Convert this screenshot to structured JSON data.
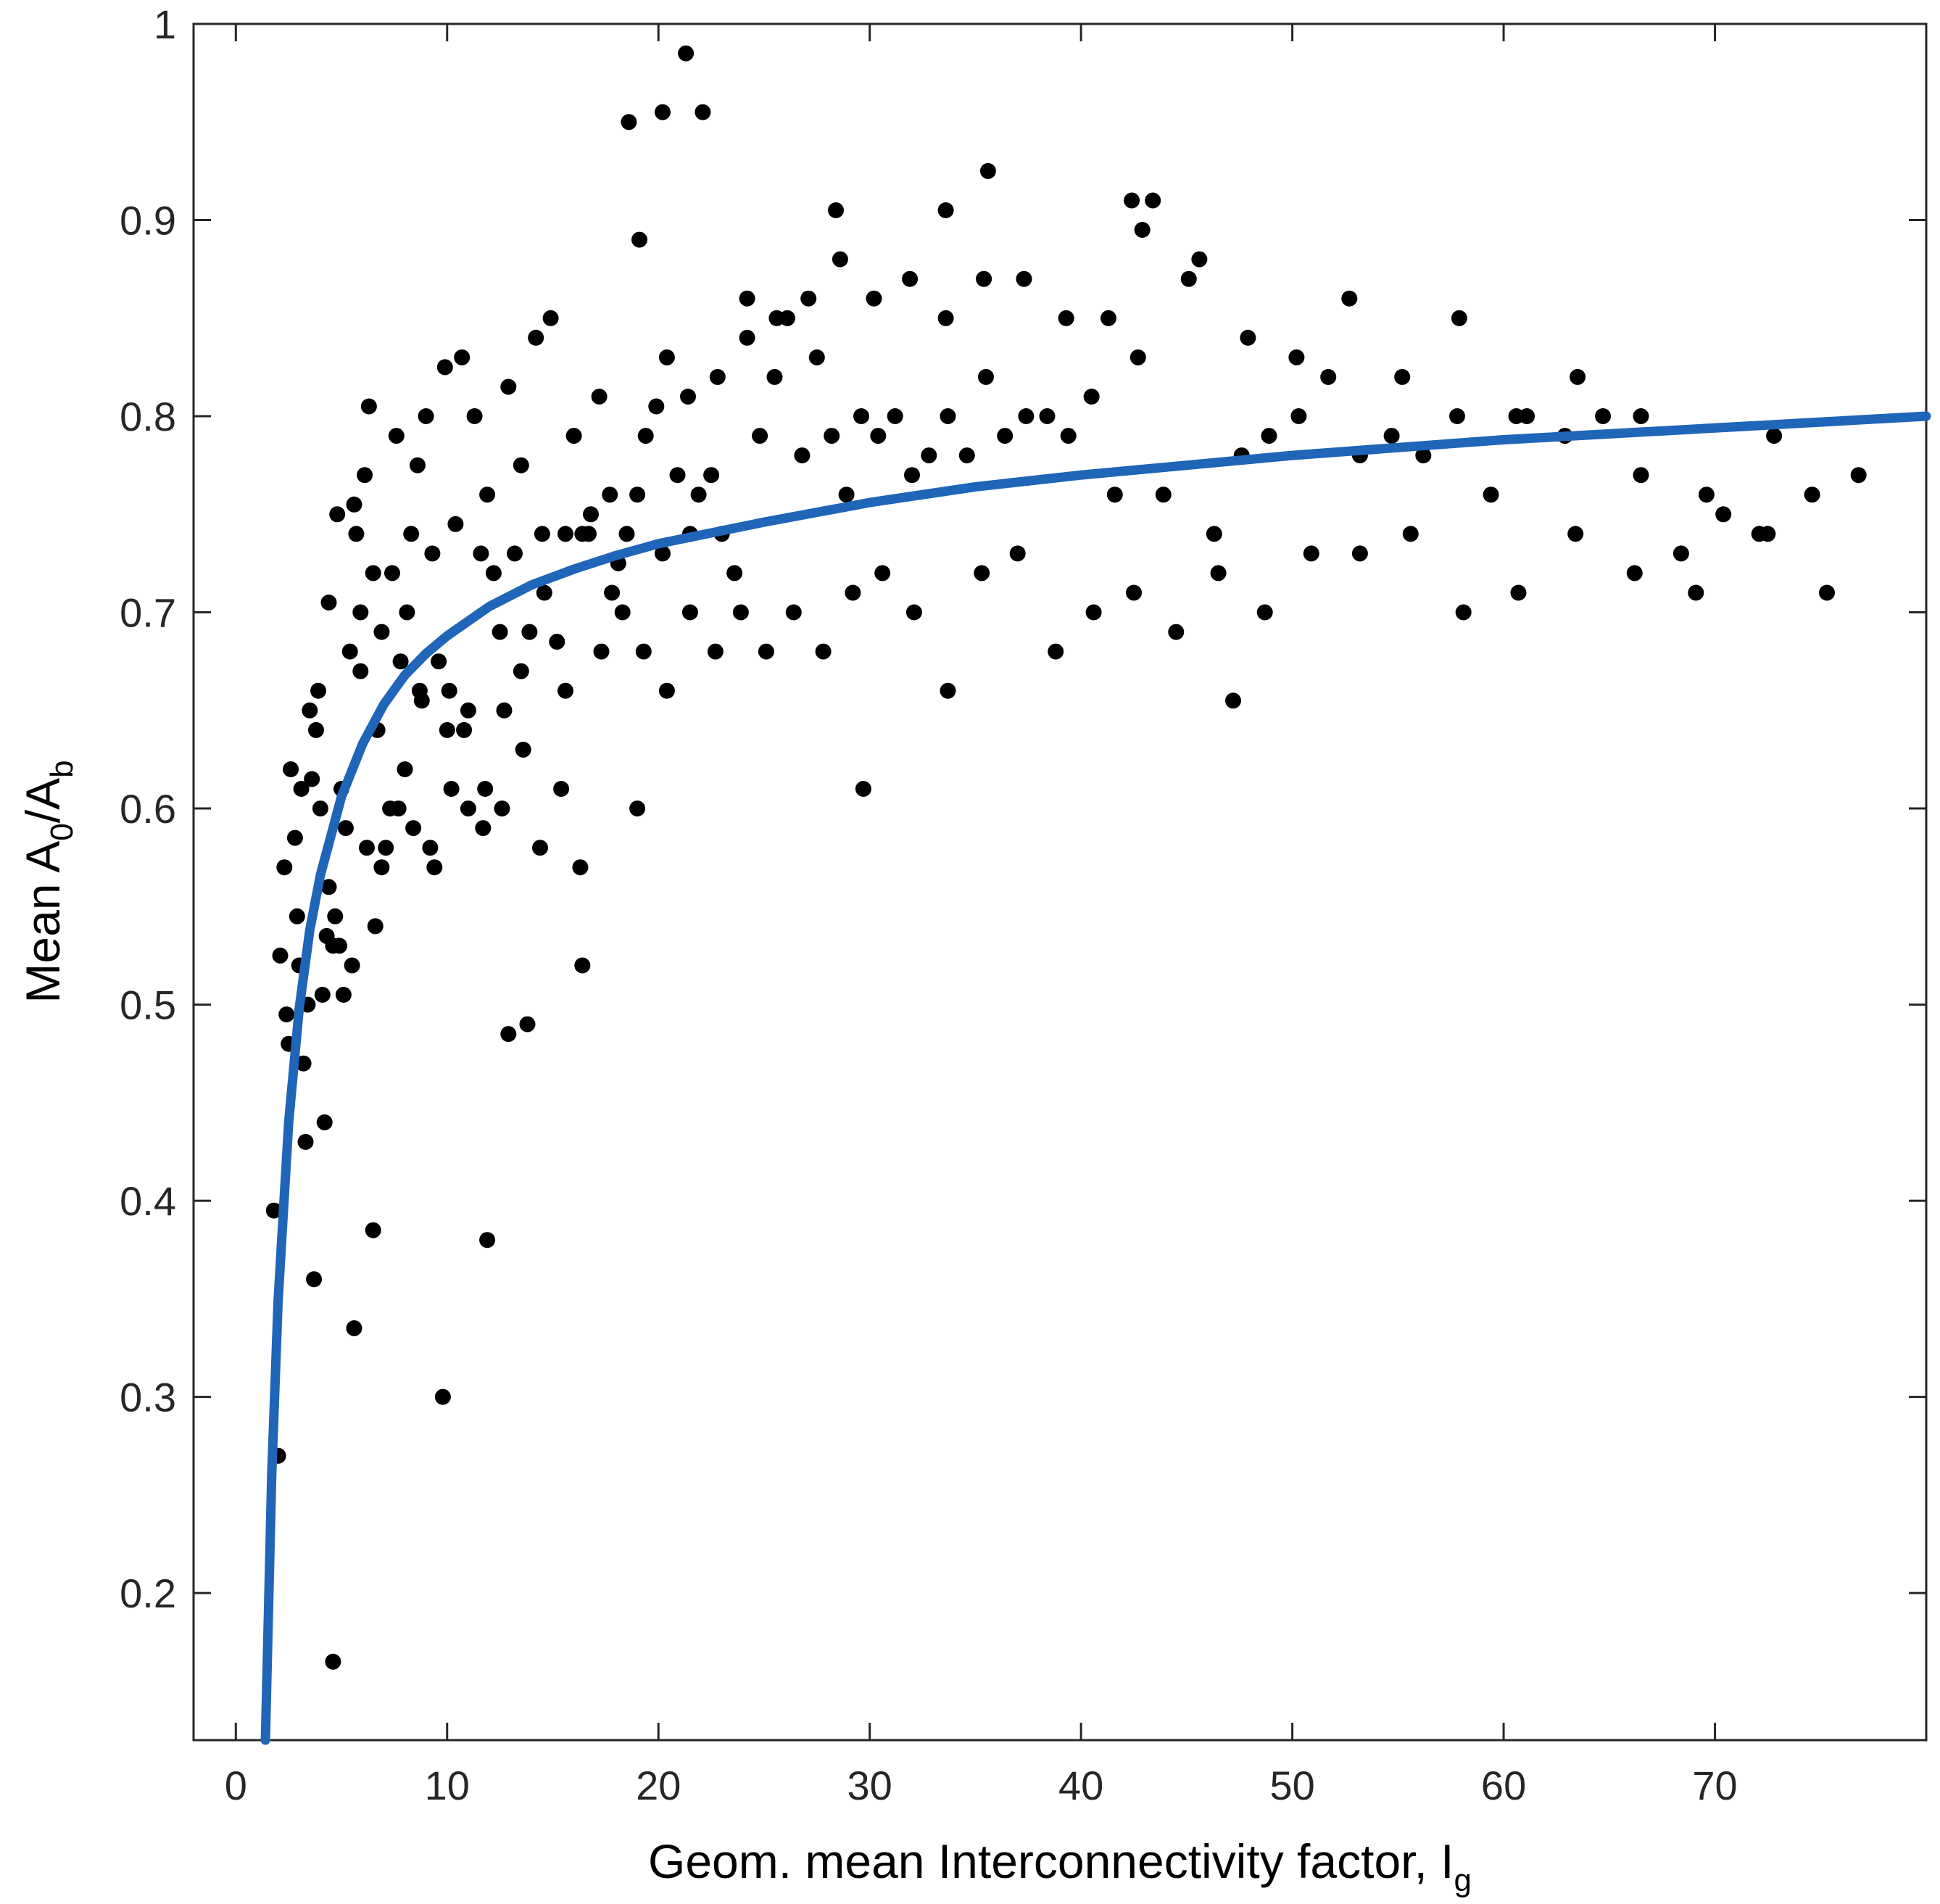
{
  "chart_data": {
    "type": "scatter",
    "title": "",
    "xlabel": {
      "main": "Geom. mean Interconnectivity factor, I",
      "sub": "g"
    },
    "ylabel": {
      "parts": [
        {
          "text": "Mean A",
          "shift": "base"
        },
        {
          "text": "0",
          "shift": "sub"
        },
        {
          "text": "/A",
          "shift": "base"
        },
        {
          "text": "b",
          "shift": "sub"
        }
      ]
    },
    "xlim": [
      -2,
      80
    ],
    "ylim": [
      0.125,
      1.0
    ],
    "xticks": [
      0,
      10,
      20,
      30,
      40,
      50,
      60,
      70
    ],
    "yticks": [
      0.2,
      0.3,
      0.4,
      0.5,
      0.6,
      0.7,
      0.8,
      0.9,
      1.0
    ],
    "xtick_labels": [
      "0",
      "10",
      "20",
      "30",
      "40",
      "50",
      "60",
      "70"
    ],
    "ytick_labels": [
      "0.2",
      "0.3",
      "0.4",
      "0.5",
      "0.6",
      "0.7",
      "0.8",
      "0.9",
      "1"
    ],
    "grid": false,
    "colors": {
      "points": "#000000",
      "fit_line": "#1f65b8",
      "axes": "#262626"
    },
    "series": [
      {
        "kind": "scatter",
        "x": [
          1.8,
          2.0,
          2.1,
          2.3,
          2.4,
          2.6,
          2.8,
          2.9,
          3.1,
          3.2,
          3.4,
          3.5,
          3.6,
          3.8,
          3.9,
          4.0,
          4.1,
          4.3,
          4.4,
          4.6,
          4.7,
          4.8,
          5.0,
          5.2,
          5.4,
          5.6,
          5.7,
          5.9,
          6.1,
          6.3,
          6.5,
          6.7,
          6.9,
          7.1,
          7.4,
          7.6,
          7.8,
          8.1,
          8.3,
          8.6,
          8.8,
          9.0,
          9.3,
          9.6,
          9.9,
          10.1,
          10.4,
          10.7,
          11.0,
          11.3,
          11.6,
          11.9,
          12.2,
          12.5,
          12.9,
          13.2,
          13.5,
          13.9,
          14.2,
          14.5,
          14.9,
          15.2,
          15.6,
          16.0,
          16.4,
          16.8,
          17.2,
          17.7,
          18.1,
          18.5,
          19.0,
          19.4,
          19.9,
          20.4,
          20.9,
          21.4,
          21.9,
          22.5,
          23.0,
          23.6,
          24.2,
          24.8,
          25.5,
          26.1,
          26.8,
          27.5,
          28.2,
          28.9,
          29.6,
          30.4,
          31.2,
          32.0,
          32.8,
          33.7,
          34.6,
          35.5,
          36.4,
          37.4,
          38.4,
          39.4,
          40.5,
          41.6,
          42.7,
          43.9,
          45.1,
          46.3,
          47.6,
          48.9,
          50.3,
          51.7,
          53.2,
          54.7,
          56.2,
          57.8,
          59.4,
          61.1,
          62.9,
          64.7,
          66.5,
          68.4,
          70.4,
          72.5,
          74.6,
          76.8,
          2.5,
          3.0,
          4.4,
          5.1,
          5.9,
          6.6,
          7.3,
          8.0,
          8.7,
          9.4,
          10.2,
          11.0,
          11.8,
          12.7,
          13.5,
          14.4,
          15.4,
          16.3,
          17.3,
          18.3,
          19.3,
          20.4,
          21.5,
          22.7,
          23.9,
          25.1,
          26.4,
          27.8,
          29.2,
          30.6,
          32.1,
          33.7,
          35.3,
          37.0,
          38.8,
          40.6,
          42.5,
          44.5,
          46.5,
          48.7,
          50.9,
          53.2,
          55.6,
          58.1,
          60.7,
          63.4,
          66.2,
          69.1,
          72.1,
          75.3,
          3.3,
          3.7,
          4.2,
          4.9,
          5.5,
          6.2,
          6.9,
          7.7,
          8.4,
          9.2,
          10.0,
          10.8,
          11.7,
          12.6,
          13.6,
          14.6,
          15.6,
          16.7,
          17.8,
          19.0,
          20.2,
          21.5,
          22.8,
          24.2,
          25.6,
          27.1,
          28.6,
          30.2,
          31.9,
          33.6,
          35.4,
          37.3,
          39.3,
          41.3,
          43.4,
          45.6,
          47.9,
          50.2,
          52.7,
          55.2,
          57.9,
          60.6,
          63.5,
          66.5,
          69.6,
          72.8,
          9.8,
          11.9,
          12.9,
          13.8,
          16.4,
          18.6,
          19.1,
          20.2,
          21.3,
          22.1,
          28.4,
          29.7,
          33.6,
          35.6,
          42.4,
          42.9,
          47.2,
          4.6,
          6.5,
          5.6
        ],
        "y": [
          0.395,
          0.27,
          0.525,
          0.57,
          0.495,
          0.62,
          0.585,
          0.545,
          0.61,
          0.47,
          0.5,
          0.65,
          0.615,
          0.64,
          0.66,
          0.6,
          0.505,
          0.535,
          0.705,
          0.53,
          0.545,
          0.75,
          0.61,
          0.59,
          0.68,
          0.755,
          0.74,
          0.7,
          0.77,
          0.805,
          0.72,
          0.64,
          0.69,
          0.58,
          0.72,
          0.79,
          0.675,
          0.7,
          0.74,
          0.775,
          0.655,
          0.8,
          0.73,
          0.675,
          0.825,
          0.66,
          0.745,
          0.83,
          0.65,
          0.8,
          0.73,
          0.76,
          0.72,
          0.69,
          0.815,
          0.73,
          0.775,
          0.69,
          0.84,
          0.74,
          0.85,
          0.685,
          0.74,
          0.79,
          0.74,
          0.75,
          0.81,
          0.76,
          0.725,
          0.74,
          0.76,
          0.79,
          0.805,
          0.83,
          0.77,
          0.81,
          0.76,
          0.77,
          0.74,
          0.72,
          0.84,
          0.79,
          0.82,
          0.85,
          0.78,
          0.83,
          0.79,
          0.76,
          0.8,
          0.79,
          0.8,
          0.77,
          0.78,
          0.8,
          0.78,
          0.82,
          0.79,
          0.8,
          0.8,
          0.79,
          0.81,
          0.76,
          0.83,
          0.76,
          0.87,
          0.74,
          0.78,
          0.79,
          0.8,
          0.82,
          0.78,
          0.79,
          0.78,
          0.8,
          0.76,
          0.8,
          0.79,
          0.8,
          0.77,
          0.73,
          0.75,
          0.74,
          0.76,
          0.77,
          0.48,
          0.52,
          0.56,
          0.505,
          0.67,
          0.54,
          0.6,
          0.62,
          0.66,
          0.57,
          0.61,
          0.6,
          0.61,
          0.65,
          0.67,
          0.58,
          0.61,
          0.57,
          0.68,
          0.7,
          0.68,
          0.66,
          0.7,
          0.68,
          0.7,
          0.68,
          0.7,
          0.68,
          0.71,
          0.72,
          0.7,
          0.66,
          0.72,
          0.73,
          0.68,
          0.7,
          0.71,
          0.69,
          0.72,
          0.7,
          0.73,
          0.73,
          0.74,
          0.7,
          0.71,
          0.74,
          0.72,
          0.71,
          0.74,
          0.71,
          0.43,
          0.36,
          0.44,
          0.53,
          0.52,
          0.58,
          0.57,
          0.6,
          0.59,
          0.58,
          0.64,
          0.64,
          0.59,
          0.6,
          0.63,
          0.71,
          0.66,
          0.74,
          0.71,
          0.6,
          0.73,
          0.74,
          0.82,
          0.86,
          0.85,
          0.86,
          0.88,
          0.86,
          0.87,
          0.85,
          0.87,
          0.87,
          0.85,
          0.85,
          0.91,
          0.88,
          0.84,
          0.83,
          0.86,
          0.82,
          0.85,
          0.8,
          0.82,
          0.8,
          0.76,
          0.79,
          0.3,
          0.38,
          0.485,
          0.49,
          0.52,
          0.95,
          0.89,
          0.955,
          0.985,
          0.955,
          0.905,
          0.61,
          0.905,
          0.925,
          0.91,
          0.895,
          0.655,
          0.165,
          0.385,
          0.335
        ]
      },
      {
        "kind": "line",
        "x": [
          1.4,
          1.7,
          2.0,
          2.5,
          3.0,
          3.5,
          4.0,
          5.0,
          6.0,
          7.0,
          8.0,
          9.0,
          10.0,
          12.0,
          14.0,
          16.0,
          18.0,
          20.0,
          25.0,
          30.0,
          35.0,
          40.0,
          45.0,
          50.0,
          55.0,
          60.0,
          65.0,
          70.0,
          75.0,
          80.0
        ],
        "y": [
          0.125,
          0.26,
          0.349,
          0.44,
          0.498,
          0.538,
          0.566,
          0.606,
          0.633,
          0.653,
          0.668,
          0.679,
          0.688,
          0.703,
          0.714,
          0.722,
          0.729,
          0.735,
          0.746,
          0.756,
          0.764,
          0.77,
          0.775,
          0.78,
          0.784,
          0.788,
          0.791,
          0.794,
          0.797,
          0.8
        ]
      }
    ]
  }
}
